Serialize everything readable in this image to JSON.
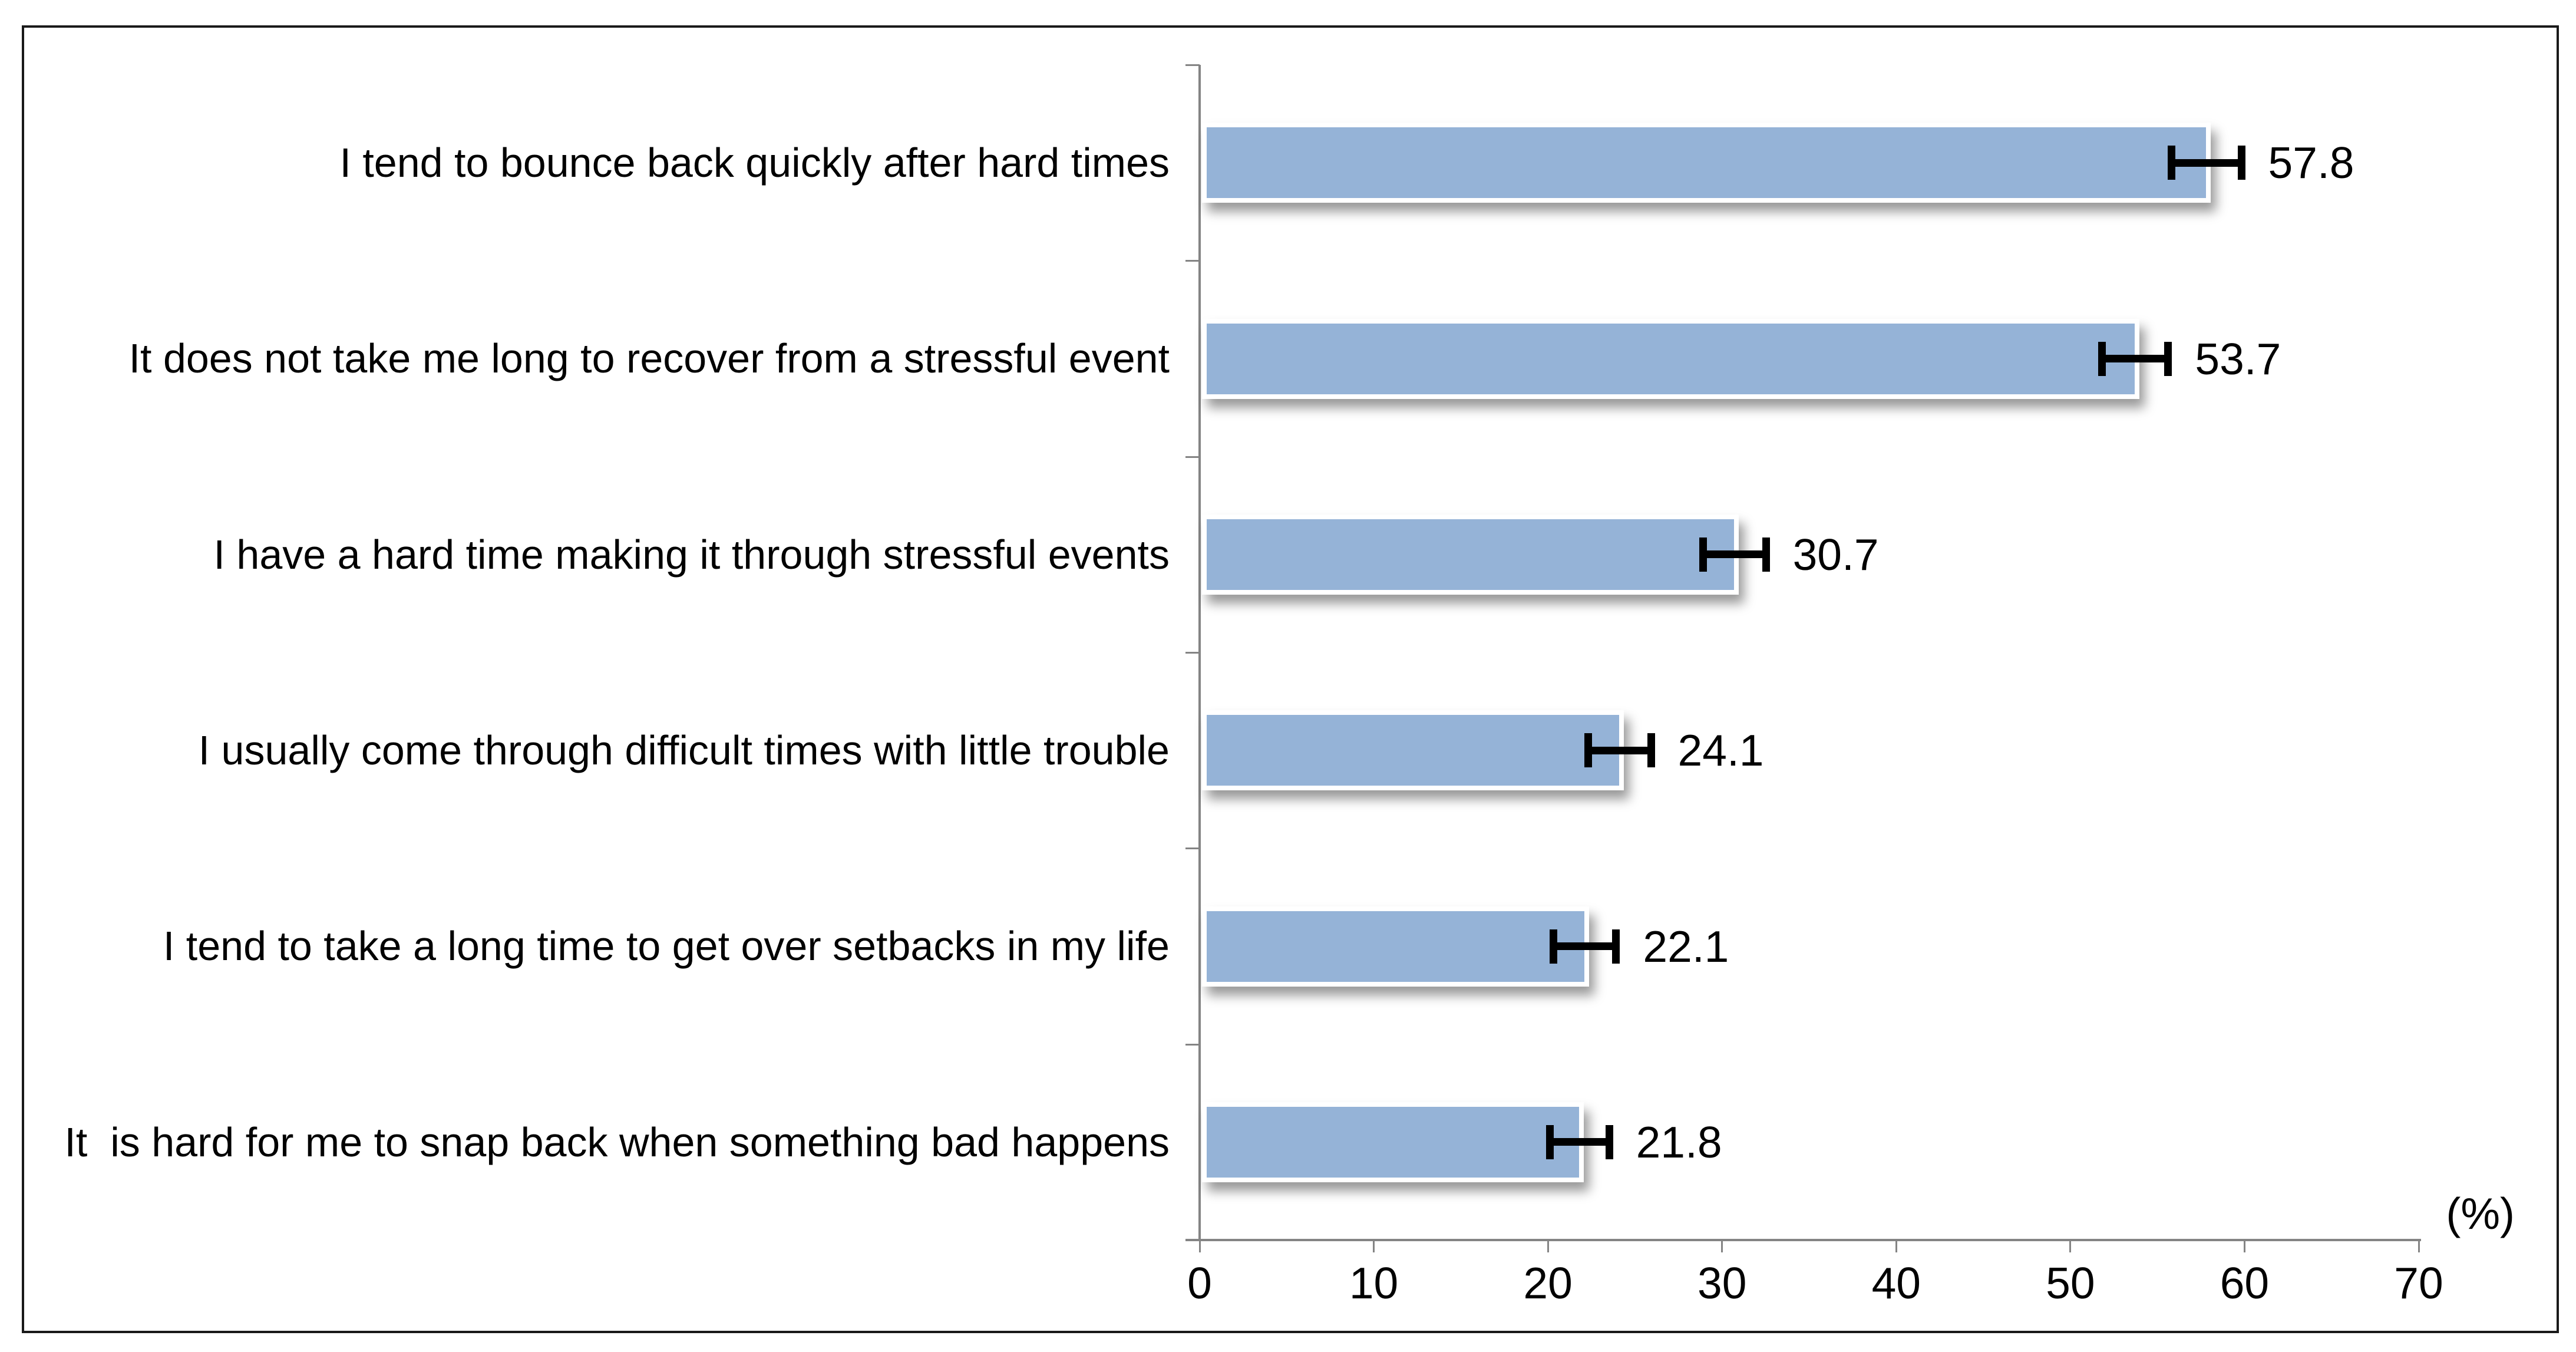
{
  "chart_data": {
    "type": "bar",
    "orientation": "horizontal",
    "title": "",
    "categories": [
      "I tend to bounce back quickly after hard times",
      "It does not take me long to recover from a stressful event",
      "I have a hard time making it through stressful events",
      "I usually come through difficult times with little trouble",
      "I tend to take a long time to get over setbacks in my life",
      "It  is hard for me to snap back when something bad happens"
    ],
    "values": [
      57.8,
      53.7,
      30.7,
      24.1,
      22.1,
      21.8
    ],
    "value_labels": [
      "57.8",
      "53.7",
      "30.7",
      "24.1",
      "22.1",
      "21.8"
    ],
    "error_bars_pct": [
      2.0,
      1.9,
      1.8,
      1.8,
      1.8,
      1.7
    ],
    "x_ticks": [
      "0",
      "10",
      "20",
      "30",
      "40",
      "50",
      "60",
      "70"
    ],
    "xlim": [
      0,
      70
    ],
    "unit_label": "(%)",
    "legend": "none",
    "gridlines": "off",
    "colors": {
      "bar_fill": "#95B3D7",
      "bar_outline": "#FFFFFF",
      "error_bar": "#000000",
      "axis_line": "#848484",
      "text": "#000000",
      "frame_border": "#1A1A1A",
      "background": "#FFFFFF"
    }
  }
}
